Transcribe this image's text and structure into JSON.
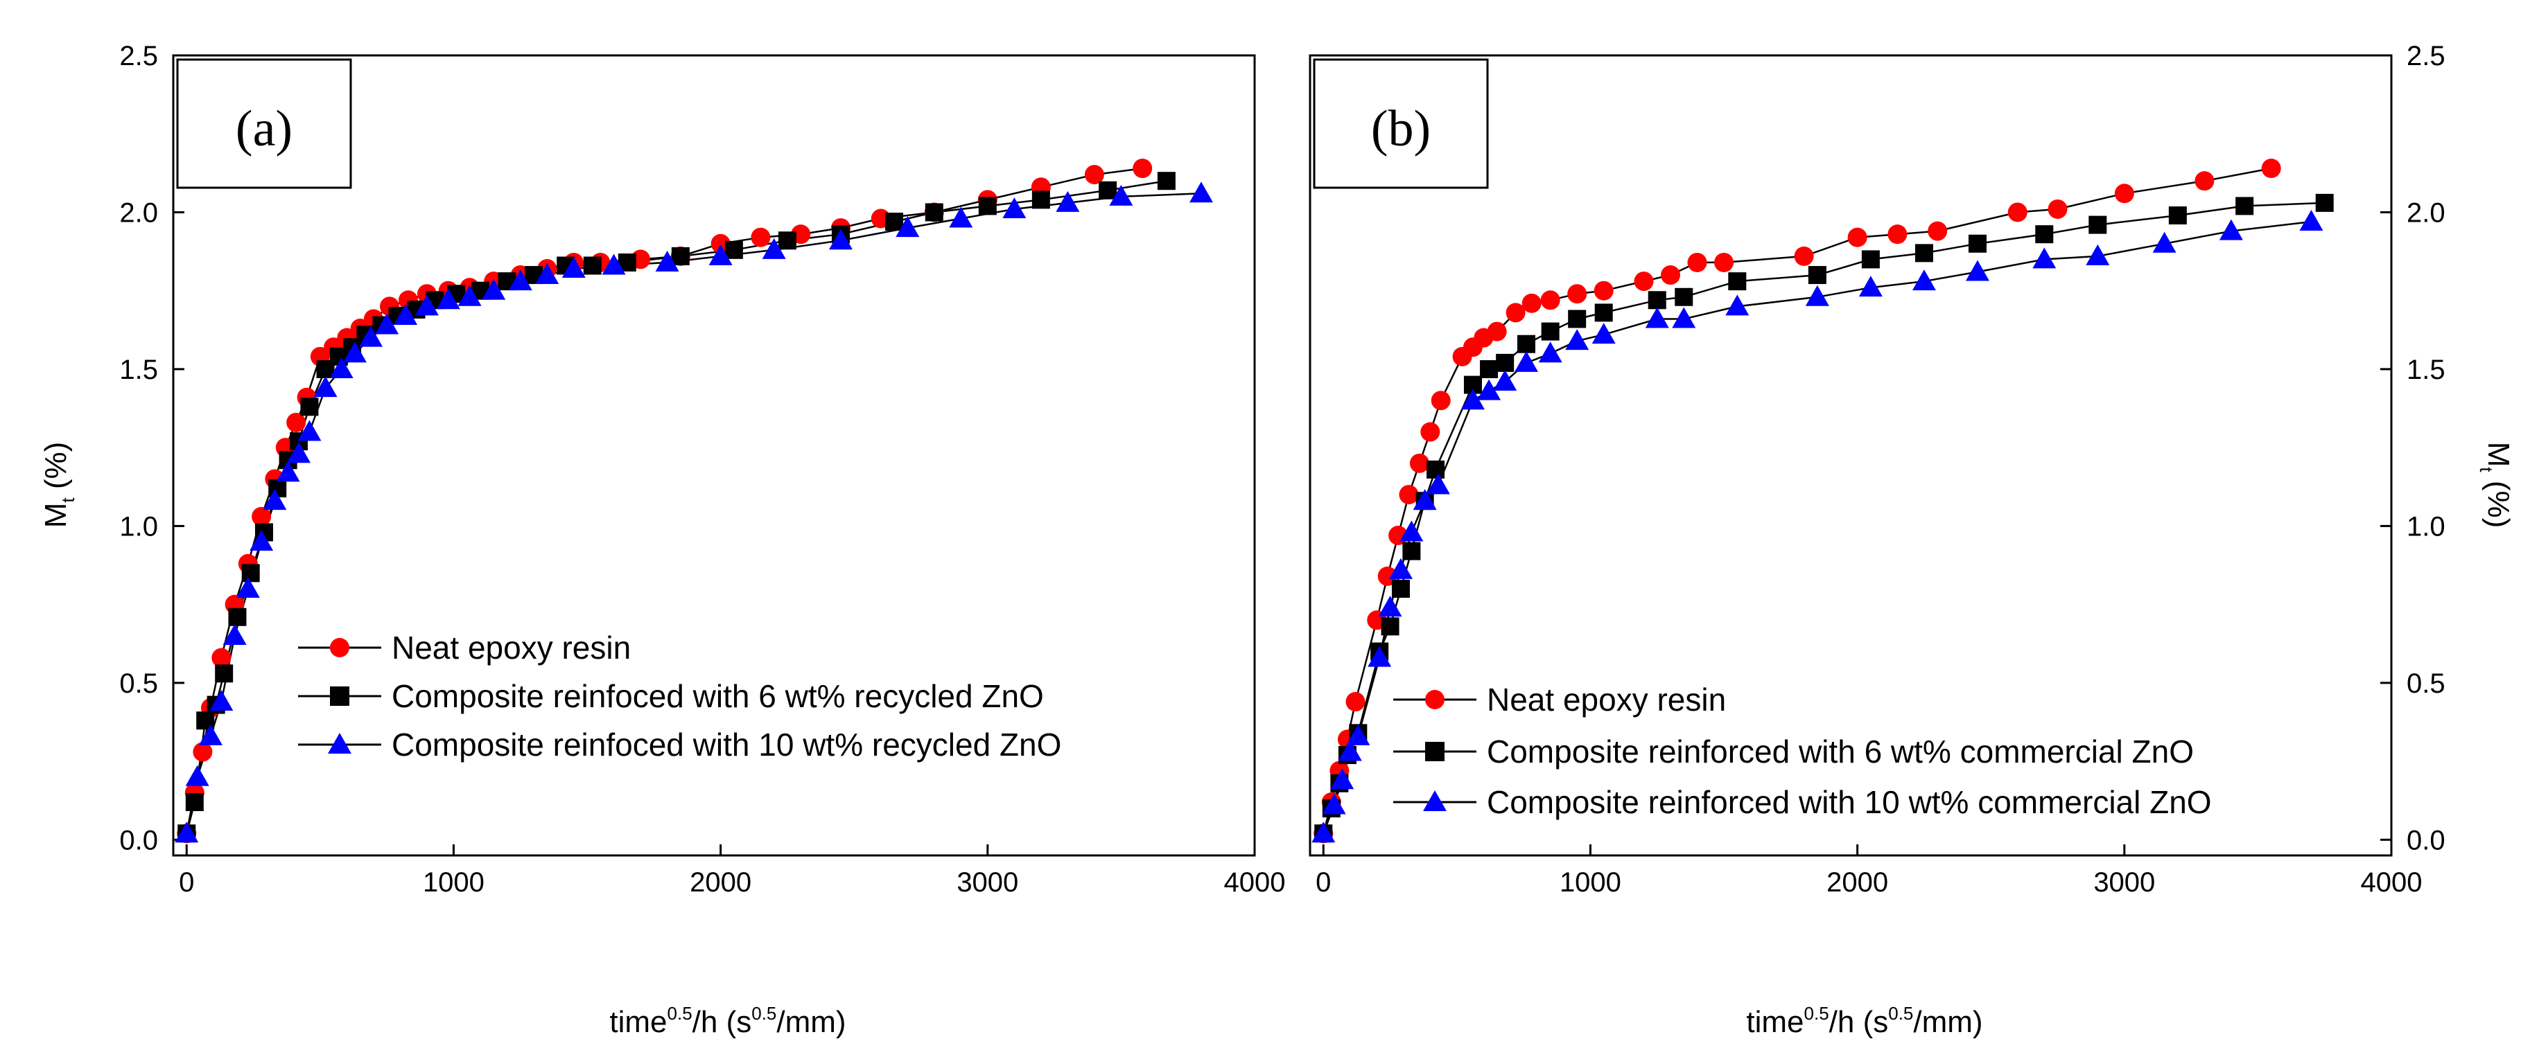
{
  "colors": {
    "series_0": "#ff0000",
    "series_1": "#000000",
    "series_2": "#0000ff",
    "frame": "#000000",
    "background": "#ffffff"
  },
  "chart_data": [
    {
      "type": "line",
      "panel_label": "(a)",
      "xlabel": "time^0.5/h (s^0.5/mm)",
      "ylabel": "Mt (%)",
      "ylabel_side": "left",
      "xlim": [
        -50,
        4000
      ],
      "ylim": [
        -0.05,
        2.5
      ],
      "xticks": [
        0,
        1000,
        2000,
        3000,
        4000
      ],
      "xtick_labels": [
        "0",
        "1000",
        "2000",
        "3000",
        "4000"
      ],
      "yticks": [
        0.0,
        0.5,
        1.0,
        1.5,
        2.0,
        2.5
      ],
      "ytick_labels": [
        "0.0",
        "0.5",
        "1.0",
        "1.5",
        "2.0",
        "2.5"
      ],
      "legend_position": "lower-center",
      "series": [
        {
          "name": "Neat epoxy resin",
          "marker": "circle",
          "x": [
            0,
            30,
            60,
            90,
            130,
            180,
            230,
            280,
            330,
            370,
            410,
            450,
            500,
            550,
            600,
            650,
            700,
            760,
            830,
            900,
            980,
            1060,
            1150,
            1250,
            1350,
            1450,
            1550,
            1700,
            1850,
            2000,
            2150,
            2300,
            2450,
            2600,
            2800,
            3000,
            3200,
            3400,
            3580
          ],
          "y": [
            0.02,
            0.15,
            0.28,
            0.42,
            0.58,
            0.75,
            0.88,
            1.03,
            1.15,
            1.25,
            1.33,
            1.41,
            1.54,
            1.57,
            1.6,
            1.63,
            1.66,
            1.7,
            1.72,
            1.74,
            1.75,
            1.76,
            1.78,
            1.8,
            1.82,
            1.84,
            1.84,
            1.85,
            1.86,
            1.9,
            1.92,
            1.93,
            1.95,
            1.98,
            2.0,
            2.04,
            2.08,
            2.12,
            2.14
          ]
        },
        {
          "name": "Composite reinfoced with 6 wt% recycled ZnO",
          "marker": "square",
          "x": [
            0,
            30,
            70,
            110,
            140,
            190,
            240,
            290,
            340,
            380,
            420,
            460,
            520,
            570,
            620,
            670,
            730,
            790,
            860,
            930,
            1010,
            1100,
            1200,
            1300,
            1420,
            1520,
            1650,
            1850,
            2050,
            2250,
            2450,
            2650,
            2800,
            3000,
            3200,
            3450,
            3670
          ],
          "y": [
            0.02,
            0.12,
            0.38,
            0.43,
            0.53,
            0.71,
            0.85,
            0.98,
            1.12,
            1.21,
            1.27,
            1.38,
            1.5,
            1.54,
            1.57,
            1.61,
            1.64,
            1.67,
            1.69,
            1.72,
            1.74,
            1.75,
            1.78,
            1.8,
            1.83,
            1.83,
            1.84,
            1.86,
            1.88,
            1.91,
            1.93,
            1.97,
            2.0,
            2.02,
            2.04,
            2.07,
            2.1
          ]
        },
        {
          "name": "Composite reinfoced with 10 wt% recycled ZnO",
          "marker": "triangle",
          "x": [
            0,
            40,
            90,
            130,
            180,
            230,
            280,
            330,
            380,
            420,
            460,
            520,
            580,
            630,
            690,
            750,
            820,
            900,
            980,
            1060,
            1150,
            1250,
            1350,
            1450,
            1600,
            1800,
            2000,
            2200,
            2450,
            2700,
            2900,
            3100,
            3300,
            3500,
            3800
          ],
          "y": [
            0.02,
            0.2,
            0.33,
            0.44,
            0.65,
            0.8,
            0.95,
            1.08,
            1.17,
            1.23,
            1.3,
            1.44,
            1.5,
            1.55,
            1.6,
            1.64,
            1.67,
            1.7,
            1.72,
            1.73,
            1.75,
            1.78,
            1.8,
            1.82,
            1.83,
            1.84,
            1.86,
            1.88,
            1.91,
            1.95,
            1.98,
            2.01,
            2.03,
            2.05,
            2.06
          ]
        }
      ]
    },
    {
      "type": "line",
      "panel_label": "(b)",
      "xlabel": "time^0.5/h (s^0.5/mm)",
      "ylabel": "Mt (%)",
      "ylabel_side": "right",
      "xlim": [
        -50,
        4000
      ],
      "ylim": [
        -0.05,
        2.5
      ],
      "xticks": [
        0,
        1000,
        2000,
        3000,
        4000
      ],
      "xtick_labels": [
        "0",
        "1000",
        "2000",
        "3000",
        "4000"
      ],
      "yticks": [
        0.0,
        0.5,
        1.0,
        1.5,
        2.0,
        2.5
      ],
      "ytick_labels": [
        "0.0",
        "0.5",
        "1.0",
        "1.5",
        "2.0",
        "2.5"
      ],
      "legend_position": "lower-right",
      "series": [
        {
          "name": "Neat epoxy resin",
          "marker": "circle",
          "x": [
            0,
            30,
            60,
            90,
            120,
            200,
            240,
            280,
            320,
            360,
            400,
            440,
            520,
            560,
            600,
            650,
            720,
            780,
            850,
            950,
            1050,
            1200,
            1300,
            1400,
            1500,
            1800,
            2000,
            2150,
            2300,
            2600,
            2750,
            3000,
            3300,
            3550
          ],
          "y": [
            0.02,
            0.12,
            0.22,
            0.32,
            0.44,
            0.7,
            0.84,
            0.97,
            1.1,
            1.2,
            1.3,
            1.4,
            1.54,
            1.57,
            1.6,
            1.62,
            1.68,
            1.71,
            1.72,
            1.74,
            1.75,
            1.78,
            1.8,
            1.84,
            1.84,
            1.86,
            1.92,
            1.93,
            1.94,
            2.0,
            2.01,
            2.06,
            2.1,
            2.14
          ]
        },
        {
          "name": "Composite reinforced with 6 wt% commercial ZnO",
          "marker": "square",
          "x": [
            0,
            30,
            60,
            90,
            130,
            210,
            250,
            290,
            330,
            380,
            420,
            560,
            620,
            680,
            760,
            850,
            950,
            1050,
            1250,
            1350,
            1550,
            1850,
            2050,
            2250,
            2450,
            2700,
            2900,
            3200,
            3450,
            3750
          ],
          "y": [
            0.02,
            0.1,
            0.18,
            0.27,
            0.34,
            0.6,
            0.68,
            0.8,
            0.92,
            1.08,
            1.18,
            1.45,
            1.5,
            1.52,
            1.58,
            1.62,
            1.66,
            1.68,
            1.72,
            1.73,
            1.78,
            1.8,
            1.85,
            1.87,
            1.9,
            1.93,
            1.96,
            1.99,
            2.02,
            2.03
          ]
        },
        {
          "name": "Composite reinforced with 10 wt% commercial ZnO",
          "marker": "triangle",
          "x": [
            0,
            40,
            70,
            100,
            130,
            210,
            250,
            290,
            330,
            380,
            430,
            560,
            620,
            680,
            760,
            850,
            950,
            1050,
            1250,
            1350,
            1550,
            1850,
            2050,
            2250,
            2450,
            2700,
            2900,
            3150,
            3400,
            3700
          ],
          "y": [
            0.02,
            0.11,
            0.19,
            0.28,
            0.33,
            0.58,
            0.74,
            0.86,
            0.98,
            1.08,
            1.13,
            1.4,
            1.43,
            1.46,
            1.52,
            1.55,
            1.59,
            1.61,
            1.66,
            1.66,
            1.7,
            1.73,
            1.76,
            1.78,
            1.81,
            1.85,
            1.86,
            1.9,
            1.94,
            1.97
          ]
        }
      ]
    }
  ]
}
